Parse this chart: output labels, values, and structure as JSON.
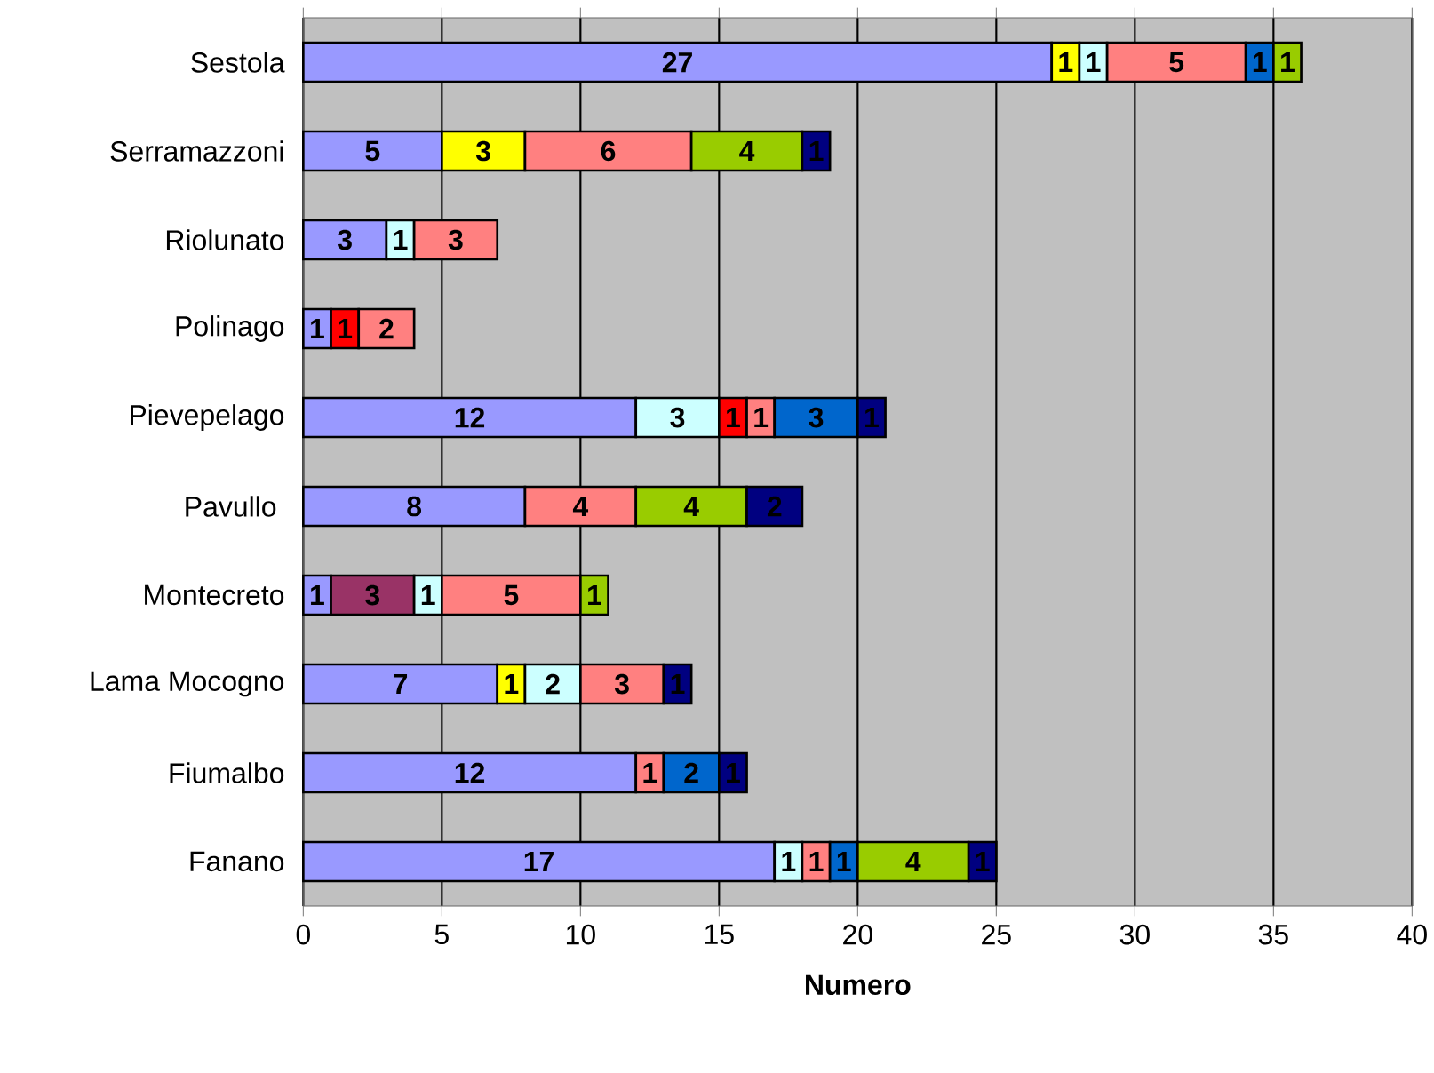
{
  "chart_data": {
    "type": "bar",
    "orientation": "horizontal",
    "stacked": true,
    "xlabel": "Numero",
    "categories": [
      "Sestola",
      "Serramazzoni",
      "Riolunato",
      "Polinago",
      "Pievepelago",
      "Pavullo ",
      "Montecreto",
      "Lama Mocogno",
      "Fiumalbo",
      "Fanano"
    ],
    "series": [
      {
        "color": "#9999ff",
        "values": [
          27,
          5,
          3,
          1,
          12,
          8,
          1,
          7,
          12,
          17
        ]
      },
      {
        "color": "#993366",
        "values": [
          null,
          null,
          null,
          null,
          null,
          null,
          3,
          null,
          null,
          null
        ]
      },
      {
        "color": "#ffff00",
        "values": [
          1,
          3,
          null,
          null,
          null,
          null,
          null,
          1,
          null,
          null
        ]
      },
      {
        "color": "#ccffff",
        "values": [
          1,
          null,
          1,
          null,
          3,
          null,
          1,
          2,
          null,
          1
        ]
      },
      {
        "color": "#ff0000",
        "values": [
          null,
          null,
          null,
          1,
          1,
          null,
          null,
          null,
          null,
          null
        ]
      },
      {
        "color": "#ff8080",
        "values": [
          5,
          6,
          3,
          2,
          1,
          4,
          5,
          3,
          1,
          1
        ]
      },
      {
        "color": "#0066cc",
        "values": [
          1,
          null,
          null,
          null,
          3,
          null,
          null,
          null,
          2,
          1
        ]
      },
      {
        "color": "#99cc00",
        "values": [
          1,
          4,
          null,
          null,
          null,
          4,
          1,
          null,
          null,
          4
        ]
      },
      {
        "color": "#000080",
        "values": [
          null,
          1,
          null,
          null,
          1,
          2,
          null,
          1,
          1,
          1
        ]
      }
    ],
    "xlim": [
      0,
      40
    ],
    "xticks": [
      0,
      5,
      10,
      15,
      20,
      25,
      30,
      35,
      40
    ],
    "grid": "x",
    "data_labels": true
  }
}
